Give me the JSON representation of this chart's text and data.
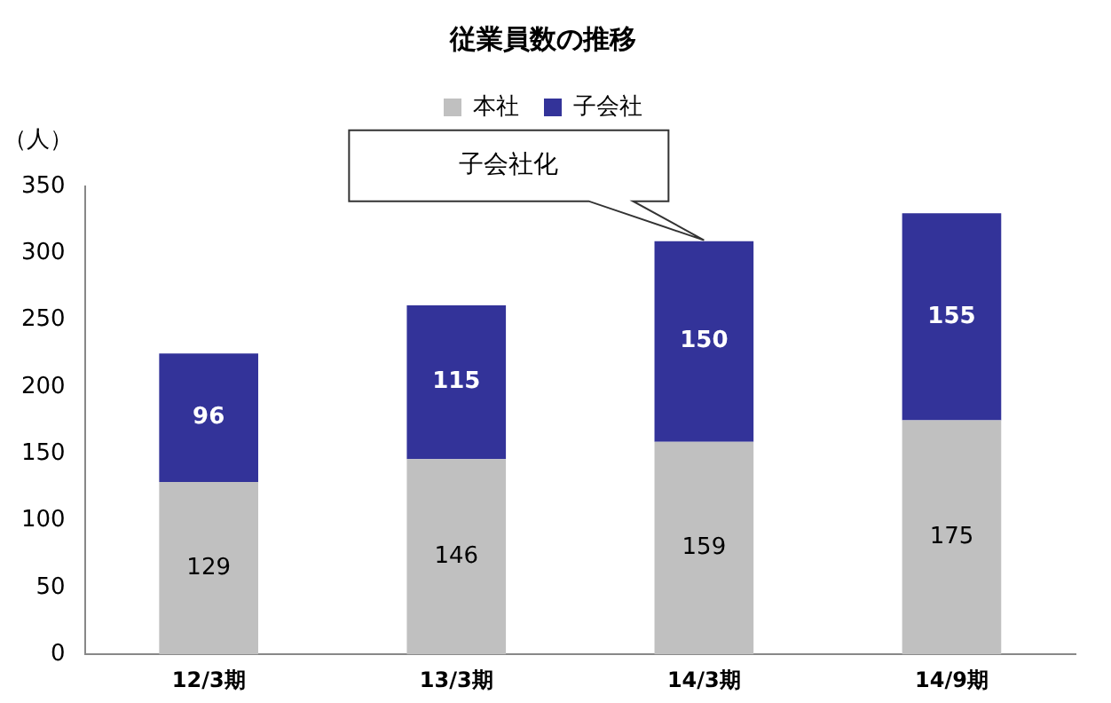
{
  "chart_data": {
    "type": "bar",
    "title": "従業員数の推移",
    "ylabel": "（人）",
    "stacked": true,
    "categories": [
      "12/3期",
      "13/3期",
      "14/3期",
      "14/9期"
    ],
    "series": [
      {
        "name": "本社",
        "color": "#c0c0c0",
        "values": [
          129,
          146,
          159,
          175
        ]
      },
      {
        "name": "子会社",
        "color": "#333399",
        "values": [
          96,
          115,
          150,
          155
        ]
      }
    ],
    "ylim": [
      0,
      350
    ],
    "yticks": [
      0,
      50,
      100,
      150,
      200,
      250,
      300,
      350
    ],
    "grid": false,
    "legend": "top",
    "data_labels": true,
    "annotations": [
      "子会社化"
    ]
  }
}
